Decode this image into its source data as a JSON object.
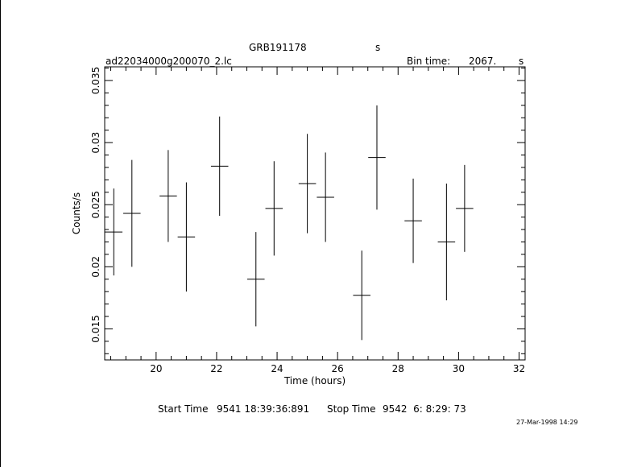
{
  "header": {
    "title_left": "GRB191178",
    "title_right": "s",
    "file_name": "ad22034000g200070_2.lc",
    "bin_time_label": "Bin time:",
    "bin_time_value": "2067.",
    "bin_time_unit": "s"
  },
  "footer": {
    "start_label": "Start Time",
    "start_value": "9541 18:39:36:891",
    "stop_label": "Stop Time",
    "stop_value": "9542  6: 8:29: 73",
    "timestamp": "27-Mar-1998 14:29"
  },
  "chart_data": {
    "type": "scatter",
    "xlabel": "Time (hours)",
    "ylabel": "Counts/s",
    "xlim": [
      18.3,
      32.2
    ],
    "ylim": [
      0.0125,
      0.0361
    ],
    "xticks": [
      20,
      22,
      24,
      26,
      28,
      30,
      32
    ],
    "yticks": [
      0.015,
      0.02,
      0.025,
      0.03,
      0.035
    ],
    "ytick_labels": [
      "0.015",
      "0.02",
      "0.025",
      "0.03",
      "0.035"
    ],
    "x_half_width": 0.287,
    "points": [
      {
        "x": 18.6,
        "y": 0.0228,
        "err": 0.0035
      },
      {
        "x": 19.2,
        "y": 0.0243,
        "err": 0.0043
      },
      {
        "x": 20.4,
        "y": 0.0257,
        "err": 0.0037
      },
      {
        "x": 21.0,
        "y": 0.0224,
        "err": 0.0044
      },
      {
        "x": 22.1,
        "y": 0.0281,
        "err": 0.004
      },
      {
        "x": 23.3,
        "y": 0.019,
        "err": 0.0038
      },
      {
        "x": 23.9,
        "y": 0.0247,
        "err": 0.0038
      },
      {
        "x": 25.0,
        "y": 0.0267,
        "err": 0.004
      },
      {
        "x": 25.6,
        "y": 0.0256,
        "err": 0.0036
      },
      {
        "x": 26.8,
        "y": 0.0177,
        "err": 0.0036
      },
      {
        "x": 27.3,
        "y": 0.0288,
        "err": 0.0042
      },
      {
        "x": 28.5,
        "y": 0.0237,
        "err": 0.0034
      },
      {
        "x": 29.6,
        "y": 0.022,
        "err": 0.0047
      },
      {
        "x": 30.2,
        "y": 0.0247,
        "err": 0.0035
      }
    ]
  }
}
